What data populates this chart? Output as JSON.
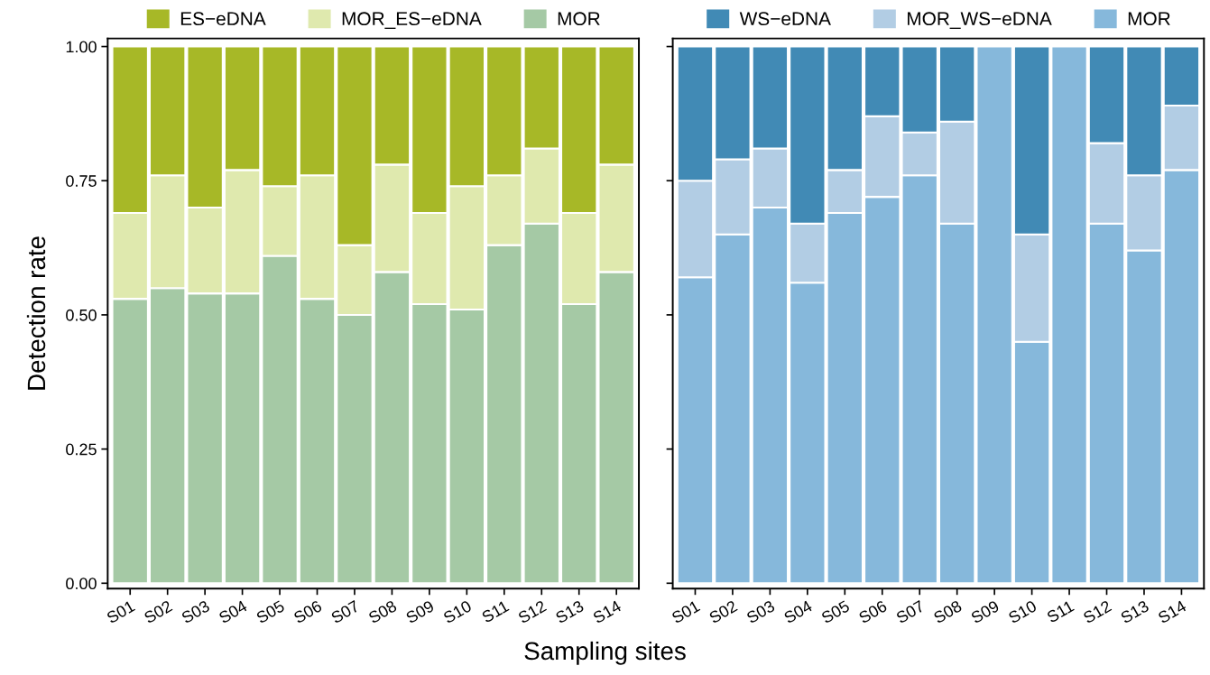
{
  "chart_data": [
    {
      "type": "bar",
      "stacked": true,
      "xlabel": "Sampling sites",
      "ylabel": "Detection rate",
      "legend": "top",
      "grid": false,
      "categories": [
        "S01",
        "S02",
        "S03",
        "S04",
        "S05",
        "S06",
        "S07",
        "S08",
        "S09",
        "S10",
        "S11",
        "S12",
        "S13",
        "S14"
      ],
      "series": [
        {
          "name": "MOR",
          "color": "#a5c9a5",
          "values": [
            0.53,
            0.55,
            0.54,
            0.54,
            0.61,
            0.53,
            0.5,
            0.58,
            0.52,
            0.51,
            0.63,
            0.67,
            0.52,
            0.58
          ]
        },
        {
          "name": "MOR_ES−eDNA",
          "color": "#dfe9ae",
          "values": [
            0.16,
            0.21,
            0.16,
            0.23,
            0.13,
            0.23,
            0.13,
            0.2,
            0.17,
            0.23,
            0.13,
            0.14,
            0.17,
            0.2
          ]
        },
        {
          "name": "ES−eDNA",
          "color": "#a7b827",
          "values": [
            0.31,
            0.24,
            0.3,
            0.23,
            0.26,
            0.24,
            0.37,
            0.22,
            0.31,
            0.26,
            0.24,
            0.19,
            0.31,
            0.22
          ]
        }
      ],
      "ylim": [
        -0.01,
        1.015
      ],
      "yticks": [
        {
          "value": 0,
          "label": "0.00"
        },
        {
          "value": 0.25,
          "label": "0.25"
        },
        {
          "value": 0.5,
          "label": "0.50"
        },
        {
          "value": 0.75,
          "label": "0.75"
        },
        {
          "value": 1,
          "label": "1.00"
        }
      ]
    },
    {
      "type": "bar",
      "stacked": true,
      "legend": "top",
      "grid": false,
      "tick_labels": "x",
      "categories": [
        "S01",
        "S02",
        "S03",
        "S04",
        "S05",
        "S06",
        "S07",
        "S08",
        "S09",
        "S10",
        "S11",
        "S12",
        "S13",
        "S14"
      ],
      "yticks": [
        {
          "value": 0,
          "label": null
        },
        {
          "value": 0.25,
          "label": null
        },
        {
          "value": 0.5,
          "label": null
        },
        {
          "value": 0.75,
          "label": null
        },
        {
          "value": 1,
          "label": null
        }
      ],
      "series": [
        {
          "name": "MOR",
          "color": "#86b8db",
          "values": [
            0.57,
            0.65,
            0.7,
            0.56,
            0.69,
            0.72,
            0.76,
            0.67,
            1.0,
            0.45,
            1.0,
            0.67,
            0.62,
            0.77
          ]
        },
        {
          "name": "MOR_WS−eDNA",
          "color": "#b2cde4",
          "values": [
            0.18,
            0.14,
            0.11,
            0.11,
            0.08,
            0.15,
            0.08,
            0.19,
            0,
            0.2,
            0,
            0.15,
            0.14,
            0.12
          ]
        },
        {
          "name": "WS−eDNA",
          "color": "#418ab5",
          "values": [
            0.25,
            0.21,
            0.19,
            0.33,
            0.23,
            0.13,
            0.16,
            0.14,
            0,
            0.35,
            0,
            0.18,
            0.24,
            0.11
          ]
        }
      ],
      "ylim": [
        -0.01,
        1.015
      ]
    }
  ]
}
